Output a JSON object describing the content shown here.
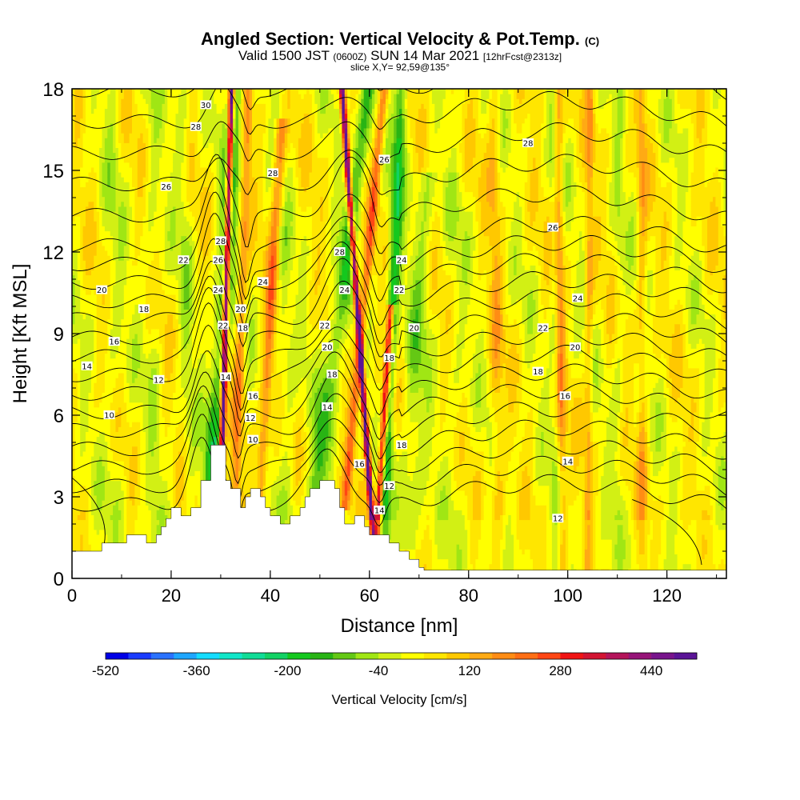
{
  "title": {
    "main": "Angled Section: Vertical Velocity & Pot.Temp.",
    "main_unit": "(C)",
    "valid_prefix": "Valid 1500 JST",
    "valid_z": "(0600Z)",
    "valid_date": "SUN 14 Mar 2021",
    "forecast": "[12hrFcst@2313z]",
    "slice": "slice X,Y= 92,59@135°"
  },
  "chart_data": {
    "type": "heatmap",
    "xlabel": "Distance [nm]",
    "ylabel": "Height [Kft MSL]",
    "xlim": [
      0,
      132
    ],
    "ylim": [
      0,
      18
    ],
    "x_ticks": [
      0,
      20,
      40,
      60,
      80,
      100,
      120
    ],
    "y_ticks": [
      0,
      3,
      6,
      9,
      12,
      15,
      18
    ],
    "colorbar": {
      "title": "Vertical Velocity [cm/s]",
      "min": -520,
      "max": 520,
      "step": 40,
      "tick_values": [
        -520,
        -360,
        -200,
        -40,
        120,
        280,
        440
      ],
      "colors": [
        "#0000e6",
        "#1a3cff",
        "#2a72ff",
        "#1ea6ff",
        "#14dcff",
        "#10e6c8",
        "#10dc96",
        "#12d264",
        "#14c81e",
        "#28b414",
        "#64c814",
        "#a0e614",
        "#d2f014",
        "#ffff00",
        "#ffe600",
        "#ffc800",
        "#ffaa14",
        "#ff8c14",
        "#ff6e14",
        "#ff4614",
        "#f01414",
        "#d21432",
        "#b4145a",
        "#961478",
        "#78148c",
        "#5a1496"
      ]
    },
    "terrain_top_kft": [
      [
        0,
        1.0
      ],
      [
        6,
        1.0
      ],
      [
        6,
        1.3
      ],
      [
        11,
        1.3
      ],
      [
        11,
        1.6
      ],
      [
        15,
        1.6
      ],
      [
        15,
        1.3
      ],
      [
        17,
        1.3
      ],
      [
        17,
        1.6
      ],
      [
        18,
        1.6
      ],
      [
        18,
        1.9
      ],
      [
        19,
        1.9
      ],
      [
        19,
        2.2
      ],
      [
        20,
        2.2
      ],
      [
        20,
        2.6
      ],
      [
        22,
        2.6
      ],
      [
        22,
        2.3
      ],
      [
        24,
        2.3
      ],
      [
        24,
        2.6
      ],
      [
        26,
        2.6
      ],
      [
        26,
        3.6
      ],
      [
        28,
        3.6
      ],
      [
        28,
        4.9
      ],
      [
        31,
        4.9
      ],
      [
        31,
        3.6
      ],
      [
        32,
        3.6
      ],
      [
        32,
        3.3
      ],
      [
        34,
        3.3
      ],
      [
        34,
        2.6
      ],
      [
        35,
        2.6
      ],
      [
        35,
        3.0
      ],
      [
        36,
        3.0
      ],
      [
        36,
        3.3
      ],
      [
        38,
        3.3
      ],
      [
        38,
        3.0
      ],
      [
        39,
        3.0
      ],
      [
        39,
        2.6
      ],
      [
        40,
        2.6
      ],
      [
        40,
        2.3
      ],
      [
        42,
        2.3
      ],
      [
        42,
        2.0
      ],
      [
        44,
        2.0
      ],
      [
        44,
        2.3
      ],
      [
        46,
        2.3
      ],
      [
        46,
        2.6
      ],
      [
        47,
        2.6
      ],
      [
        47,
        3.0
      ],
      [
        48,
        3.0
      ],
      [
        48,
        3.3
      ],
      [
        50,
        3.3
      ],
      [
        50,
        3.6
      ],
      [
        53,
        3.6
      ],
      [
        53,
        3.3
      ],
      [
        54,
        3.3
      ],
      [
        54,
        2.6
      ],
      [
        55,
        2.6
      ],
      [
        55,
        2.0
      ],
      [
        57,
        2.0
      ],
      [
        57,
        2.3
      ],
      [
        59,
        2.3
      ],
      [
        59,
        1.9
      ],
      [
        60,
        1.9
      ],
      [
        60,
        1.6
      ],
      [
        64,
        1.6
      ],
      [
        64,
        1.3
      ],
      [
        66,
        1.3
      ],
      [
        66,
        1.0
      ],
      [
        68,
        1.0
      ],
      [
        68,
        0.7
      ],
      [
        70,
        0.7
      ],
      [
        70,
        0.4
      ],
      [
        71,
        0.4
      ],
      [
        71,
        0.3
      ],
      [
        132,
        0.3
      ]
    ],
    "contour_labels": [
      {
        "value": "30",
        "x": 27,
        "y": 17.4
      },
      {
        "value": "28",
        "x": 25,
        "y": 16.6
      },
      {
        "value": "26",
        "x": 19,
        "y": 14.4
      },
      {
        "value": "28",
        "x": 40.5,
        "y": 14.9
      },
      {
        "value": "26",
        "x": 63,
        "y": 15.4
      },
      {
        "value": "28",
        "x": 92,
        "y": 16.0
      },
      {
        "value": "26",
        "x": 97,
        "y": 12.9
      },
      {
        "value": "28",
        "x": 30,
        "y": 12.4
      },
      {
        "value": "26",
        "x": 29.5,
        "y": 11.7
      },
      {
        "value": "22",
        "x": 22.5,
        "y": 11.7
      },
      {
        "value": "28",
        "x": 54,
        "y": 12.0
      },
      {
        "value": "24",
        "x": 66.5,
        "y": 11.7
      },
      {
        "value": "24",
        "x": 38.5,
        "y": 10.9
      },
      {
        "value": "20",
        "x": 6,
        "y": 10.6
      },
      {
        "value": "24",
        "x": 29.5,
        "y": 10.6
      },
      {
        "value": "24",
        "x": 55,
        "y": 10.6
      },
      {
        "value": "22",
        "x": 66,
        "y": 10.6
      },
      {
        "value": "24",
        "x": 102,
        "y": 10.3
      },
      {
        "value": "18",
        "x": 14.5,
        "y": 9.9
      },
      {
        "value": "20",
        "x": 34,
        "y": 9.9
      },
      {
        "value": "22",
        "x": 30.5,
        "y": 9.3
      },
      {
        "value": "18",
        "x": 34.5,
        "y": 9.2
      },
      {
        "value": "22",
        "x": 51,
        "y": 9.3
      },
      {
        "value": "20",
        "x": 69,
        "y": 9.2
      },
      {
        "value": "22",
        "x": 95,
        "y": 9.2
      },
      {
        "value": "16",
        "x": 8.5,
        "y": 8.7
      },
      {
        "value": "20",
        "x": 51.5,
        "y": 8.5
      },
      {
        "value": "20",
        "x": 101.5,
        "y": 8.5
      },
      {
        "value": "18",
        "x": 64,
        "y": 8.1
      },
      {
        "value": "14",
        "x": 3,
        "y": 7.8
      },
      {
        "value": "18",
        "x": 52.5,
        "y": 7.5
      },
      {
        "value": "18",
        "x": 94,
        "y": 7.6
      },
      {
        "value": "12",
        "x": 17.5,
        "y": 7.3
      },
      {
        "value": "14",
        "x": 31,
        "y": 7.4
      },
      {
        "value": "16",
        "x": 36.5,
        "y": 6.7
      },
      {
        "value": "16",
        "x": 99.5,
        "y": 6.7
      },
      {
        "value": "14",
        "x": 51.5,
        "y": 6.3
      },
      {
        "value": "10",
        "x": 7.5,
        "y": 6.0
      },
      {
        "value": "12",
        "x": 36,
        "y": 5.9
      },
      {
        "value": "10",
        "x": 36.5,
        "y": 5.1
      },
      {
        "value": "18",
        "x": 66.5,
        "y": 4.9
      },
      {
        "value": "14",
        "x": 100,
        "y": 4.3
      },
      {
        "value": "16",
        "x": 58,
        "y": 4.2
      },
      {
        "value": "12",
        "x": 64,
        "y": 3.4
      },
      {
        "value": "14",
        "x": 62,
        "y": 2.5
      },
      {
        "value": "12",
        "x": 98,
        "y": 2.2
      }
    ]
  }
}
